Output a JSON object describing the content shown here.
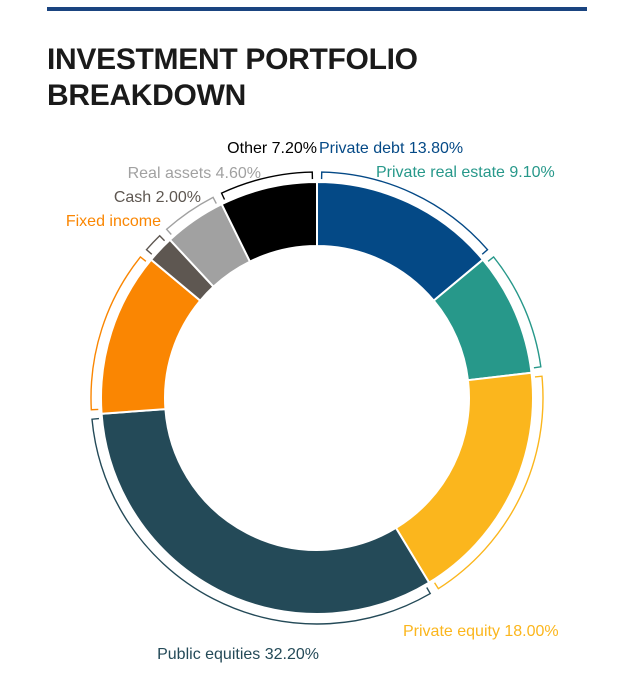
{
  "title_lines": [
    "INVESTMENT PORTFOLIO",
    "BREAKDOWN"
  ],
  "colors": {
    "rule": "#1a4480",
    "title": "#1a1a1a"
  },
  "chart_data": {
    "type": "pie",
    "variant": "donut",
    "title": "INVESTMENT PORTFOLIO BREAKDOWN",
    "unit": "%",
    "categories": [
      "Private debt",
      "Private real estate",
      "Private equity",
      "Public equities",
      "Fixed income",
      "Cash",
      "Real assets",
      "Other"
    ],
    "values": [
      13.8,
      9.1,
      18.0,
      32.2,
      12.1,
      2.0,
      4.6,
      7.2
    ],
    "labels": [
      "Private debt 13.80%",
      "Private real estate 9.10%",
      "Private equity 18.00%",
      "Public equities 32.20%",
      "Fixed income",
      "Cash 2.00%",
      "Real assets 4.60%",
      "Other 7.20%"
    ],
    "colors": [
      "#044986",
      "#27988a",
      "#fbb61d",
      "#244a58",
      "#fa8602",
      "#5e5751",
      "#a1a1a1",
      "#000000"
    ],
    "label_colors": [
      "#044986",
      "#27988a",
      "#fbb61d",
      "#244a58",
      "#fa8602",
      "#5e5751",
      "#a1a1a1",
      "#000000"
    ],
    "start_angle_deg": 0,
    "direction": "clockwise",
    "legend": "none"
  }
}
